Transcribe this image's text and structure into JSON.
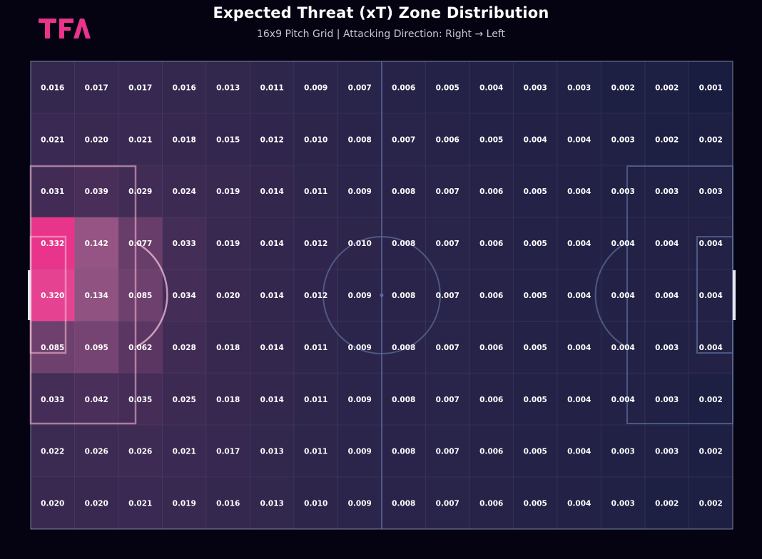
{
  "brand": {
    "logo_text": "TFA",
    "logo_color": "#e8348a"
  },
  "header": {
    "title": "Expected Threat (xT) Zone Distribution",
    "subtitle": "16x9 Pitch Grid | Attacking Direction: Right → Left"
  },
  "chart_data": {
    "type": "heatmap",
    "columns": 16,
    "rows": 9,
    "colors": {
      "low": "#0c1a3a",
      "high": "#e8348a",
      "lines": "#5a6a9a"
    },
    "values": [
      [
        0.016,
        0.017,
        0.017,
        0.016,
        0.013,
        0.011,
        0.009,
        0.007,
        0.006,
        0.005,
        0.004,
        0.003,
        0.003,
        0.002,
        0.002,
        0.001
      ],
      [
        0.021,
        0.02,
        0.021,
        0.018,
        0.015,
        0.012,
        0.01,
        0.008,
        0.007,
        0.006,
        0.005,
        0.004,
        0.004,
        0.003,
        0.002,
        0.002
      ],
      [
        0.031,
        0.039,
        0.029,
        0.024,
        0.019,
        0.014,
        0.011,
        0.009,
        0.008,
        0.007,
        0.006,
        0.005,
        0.004,
        0.003,
        0.003,
        0.003
      ],
      [
        0.332,
        0.142,
        0.077,
        0.033,
        0.019,
        0.014,
        0.012,
        0.01,
        0.008,
        0.007,
        0.006,
        0.005,
        0.004,
        0.004,
        0.004,
        0.004
      ],
      [
        0.32,
        0.134,
        0.085,
        0.034,
        0.02,
        0.014,
        0.012,
        0.009,
        0.008,
        0.007,
        0.006,
        0.005,
        0.004,
        0.004,
        0.004,
        0.004
      ],
      [
        0.085,
        0.095,
        0.062,
        0.028,
        0.018,
        0.014,
        0.011,
        0.009,
        0.008,
        0.007,
        0.006,
        0.005,
        0.004,
        0.004,
        0.003,
        0.004
      ],
      [
        0.033,
        0.042,
        0.035,
        0.025,
        0.018,
        0.014,
        0.011,
        0.009,
        0.008,
        0.007,
        0.006,
        0.005,
        0.004,
        0.004,
        0.003,
        0.002
      ],
      [
        0.022,
        0.026,
        0.026,
        0.021,
        0.017,
        0.013,
        0.011,
        0.009,
        0.008,
        0.007,
        0.006,
        0.005,
        0.004,
        0.003,
        0.003,
        0.002
      ],
      [
        0.02,
        0.02,
        0.021,
        0.019,
        0.016,
        0.013,
        0.01,
        0.009,
        0.008,
        0.007,
        0.006,
        0.005,
        0.004,
        0.003,
        0.002,
        0.002
      ]
    ]
  }
}
